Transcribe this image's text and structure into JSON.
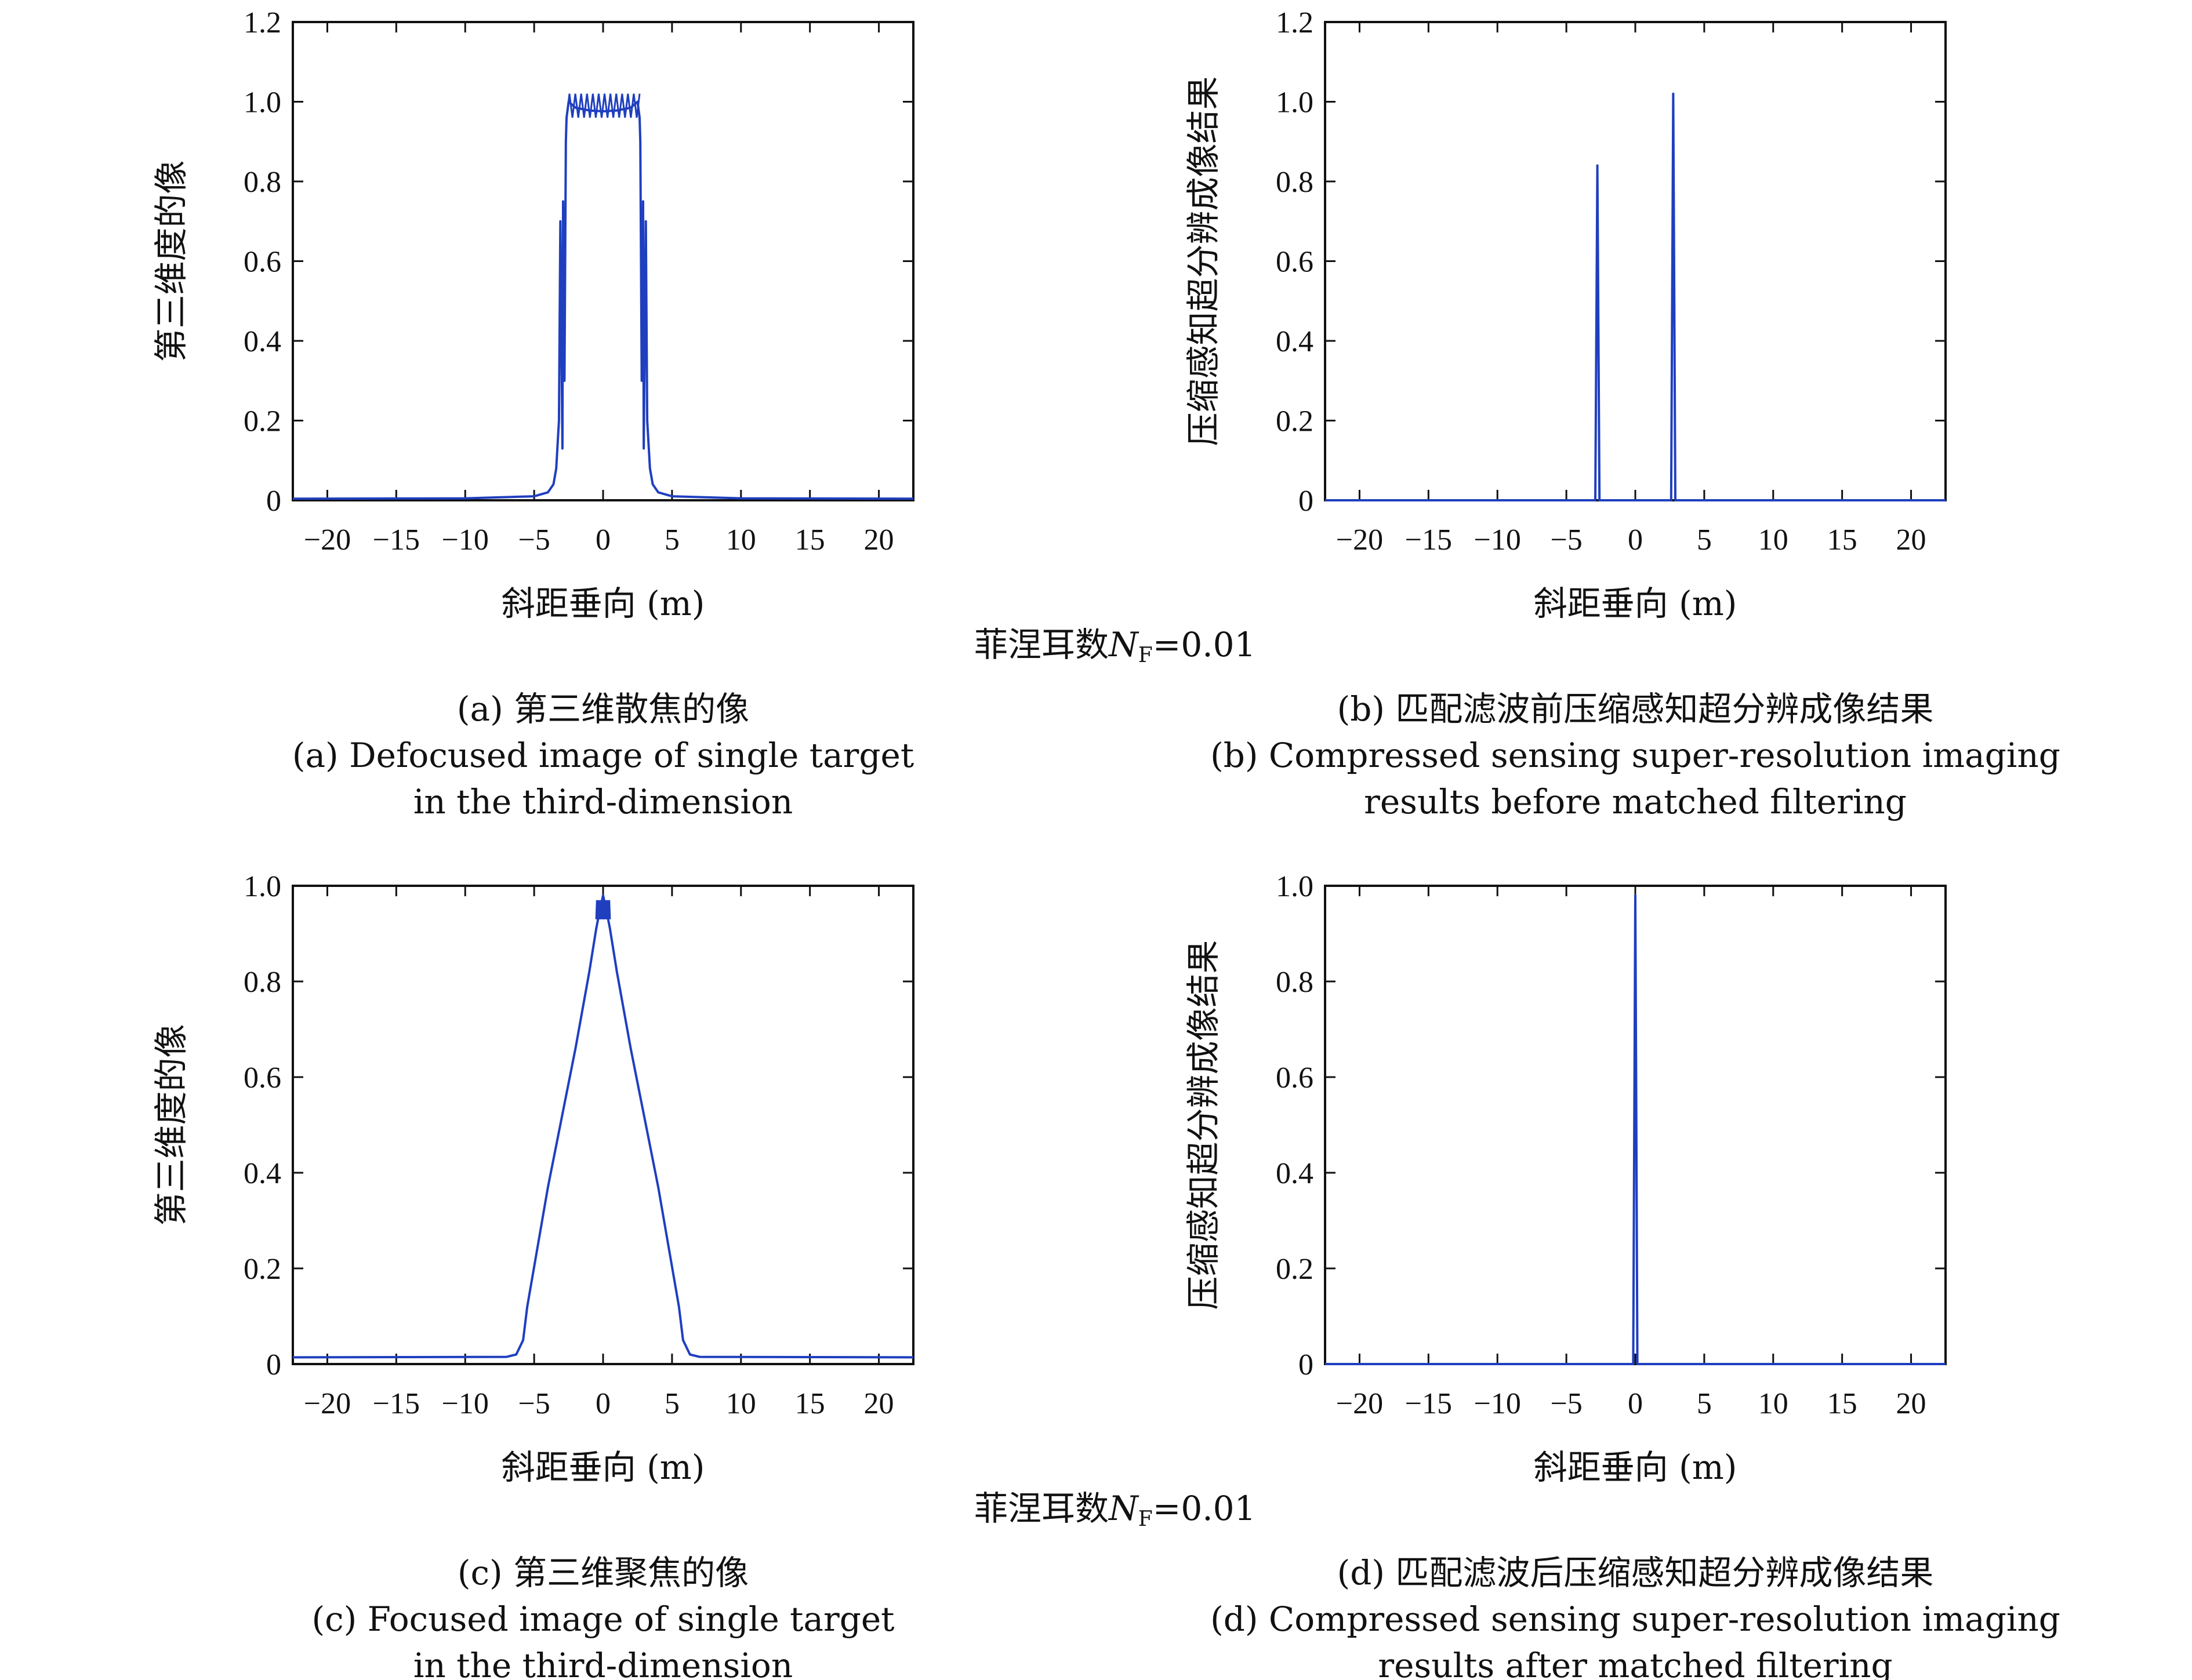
{
  "colors": {
    "line": "#1f3fbf",
    "axis": "#111111"
  },
  "fresnel": {
    "prefix": "菲涅耳数",
    "symbol": "N",
    "sub": "F",
    "value": "=0.01"
  },
  "chart_data": [
    {
      "type": "line",
      "xlabel": "斜距垂向 (m)",
      "ylabel": "第三维度的像",
      "xlim": [
        -22.5,
        22.5
      ],
      "ylim": [
        0,
        1.2
      ],
      "xticks": [
        -20,
        -15,
        -10,
        -5,
        0,
        5,
        10,
        15,
        20
      ],
      "xtick_labels": [
        "−20",
        "−15",
        "−10",
        "−5",
        "0",
        "5",
        "10",
        "15",
        "20"
      ],
      "yticks": [
        0,
        0.2,
        0.4,
        0.6,
        0.8,
        1.0,
        1.2
      ],
      "ytick_labels": [
        "0",
        "0.2",
        "0.4",
        "0.6",
        "0.8",
        "1.0",
        "1.2"
      ],
      "caption": [
        "(a) 第三维散焦的像",
        "(a) Defocused image of single target",
        "in the third-dimension"
      ],
      "x": [
        -22.5,
        -10,
        -5,
        -4,
        -3.6,
        -3.4,
        -3.2,
        -3.1,
        -2.95,
        -2.9,
        -2.8,
        -2.7,
        -2.65,
        -2.5,
        -2,
        -1,
        0,
        1,
        2,
        2.5,
        2.65,
        2.7,
        2.8,
        2.9,
        2.95,
        3.1,
        3.2,
        3.4,
        3.6,
        4,
        5,
        10,
        22.5
      ],
      "y": [
        0.004,
        0.005,
        0.01,
        0.02,
        0.04,
        0.08,
        0.2,
        0.7,
        0.13,
        0.75,
        0.3,
        0.9,
        0.96,
        1.0,
        0.985,
        0.978,
        0.976,
        0.978,
        0.985,
        1.0,
        0.96,
        0.9,
        0.3,
        0.75,
        0.13,
        0.7,
        0.2,
        0.08,
        0.04,
        0.02,
        0.01,
        0.005,
        0.004
      ],
      "ripples": [
        {
          "from": -2.65,
          "to": 2.65,
          "low": 0.96,
          "high": 1.02
        }
      ]
    },
    {
      "type": "line",
      "xlabel": "斜距垂向 (m)",
      "ylabel": "压缩感知超分辨成像结果",
      "xlim": [
        -22.5,
        22.5
      ],
      "ylim": [
        0,
        1.2
      ],
      "xticks": [
        -20,
        -15,
        -10,
        -5,
        0,
        5,
        10,
        15,
        20
      ],
      "xtick_labels": [
        "−20",
        "−15",
        "−10",
        "−5",
        "0",
        "5",
        "10",
        "15",
        "20"
      ],
      "yticks": [
        0,
        0.2,
        0.4,
        0.6,
        0.8,
        1.0,
        1.2
      ],
      "ytick_labels": [
        "0",
        "0.2",
        "0.4",
        "0.6",
        "0.8",
        "1.0",
        "1.2"
      ],
      "caption": [
        "(b) 匹配滤波前压缩感知超分辨成像结果",
        "(b) Compressed sensing super-resolution imaging",
        "results before matched filtering"
      ],
      "x": [
        -22.5,
        -2.9,
        -2.75,
        -2.6,
        2.6,
        2.75,
        2.9,
        22.5
      ],
      "y": [
        0,
        0,
        0.84,
        0,
        0,
        1.02,
        0,
        0
      ]
    },
    {
      "type": "line",
      "xlabel": "斜距垂向 (m)",
      "ylabel": "第三维度的像",
      "xlim": [
        -22.5,
        22.5
      ],
      "ylim": [
        0,
        1.0
      ],
      "xticks": [
        -20,
        -15,
        -10,
        -5,
        0,
        5,
        10,
        15,
        20
      ],
      "xtick_labels": [
        "−20",
        "−15",
        "−10",
        "−5",
        "0",
        "5",
        "10",
        "15",
        "20"
      ],
      "yticks": [
        0,
        0.2,
        0.4,
        0.6,
        0.8,
        1.0
      ],
      "ytick_labels": [
        "0",
        "0.2",
        "0.4",
        "0.6",
        "0.8",
        "1.0"
      ],
      "caption": [
        "(c) 第三维聚焦的像",
        "(c) Focused image of single target",
        "in the third-dimension"
      ],
      "x": [
        -22.5,
        -7,
        -6.3,
        -5.8,
        -5.5,
        -4,
        -2,
        -1,
        -0.5,
        -0.3,
        0,
        0.3,
        0.5,
        1,
        2,
        4,
        5.5,
        5.8,
        6.3,
        7,
        22.5
      ],
      "y": [
        0.014,
        0.015,
        0.02,
        0.05,
        0.12,
        0.37,
        0.66,
        0.82,
        0.91,
        0.94,
        0.98,
        0.94,
        0.91,
        0.82,
        0.66,
        0.37,
        0.12,
        0.05,
        0.02,
        0.015,
        0.014
      ],
      "ripples": [
        {
          "from": -0.5,
          "to": 0.5,
          "low": 0.93,
          "high": 0.97
        }
      ]
    },
    {
      "type": "line",
      "xlabel": "斜距垂向 (m)",
      "ylabel": "压缩感知超分辨成像结果",
      "xlim": [
        -22.5,
        22.5
      ],
      "ylim": [
        0,
        1.0
      ],
      "xticks": [
        -20,
        -15,
        -10,
        -5,
        0,
        5,
        10,
        15,
        20
      ],
      "xtick_labels": [
        "−20",
        "−15",
        "−10",
        "−5",
        "0",
        "5",
        "10",
        "15",
        "20"
      ],
      "yticks": [
        0,
        0.2,
        0.4,
        0.6,
        0.8,
        1.0
      ],
      "ytick_labels": [
        "0",
        "0.2",
        "0.4",
        "0.6",
        "0.8",
        "1.0"
      ],
      "caption": [
        "(d) 匹配滤波后压缩感知超分辨成像结果",
        "(d) Compressed sensing super-resolution imaging",
        "results after matched filtering"
      ],
      "x": [
        -22.5,
        -0.15,
        0,
        0.15,
        22.5
      ],
      "y": [
        0,
        0,
        0.98,
        0,
        0
      ]
    }
  ]
}
